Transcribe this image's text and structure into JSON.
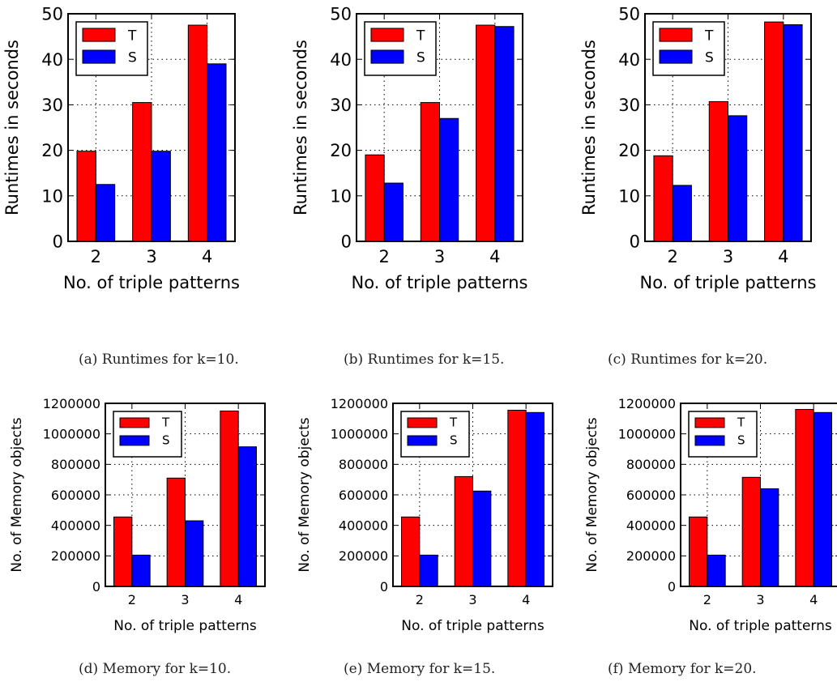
{
  "colors": {
    "T": "#ff0000",
    "S": "#0000ff",
    "edge": "#000000",
    "grid": "#000000"
  },
  "chart_data": [
    {
      "type": "bar",
      "caption": "(a) Runtimes for k=10.",
      "categories": [
        "2",
        "3",
        "4"
      ],
      "xlabel": "No. of triple patterns",
      "ylabel": "Runtimes in seconds",
      "ylim": [
        0,
        50
      ],
      "yticks": [
        "0",
        "10",
        "20",
        "30",
        "40",
        "50"
      ],
      "grid": true,
      "legend_position": "top-left",
      "series": [
        {
          "name": "T",
          "values": [
            19.8,
            30.5,
            47.5
          ]
        },
        {
          "name": "S",
          "values": [
            12.5,
            19.8,
            39.0
          ]
        }
      ]
    },
    {
      "type": "bar",
      "caption": "(b) Runtimes for k=15.",
      "categories": [
        "2",
        "3",
        "4"
      ],
      "xlabel": "No. of triple patterns",
      "ylabel": "Runtimes in seconds",
      "ylim": [
        0,
        50
      ],
      "yticks": [
        "0",
        "10",
        "20",
        "30",
        "40",
        "50"
      ],
      "grid": true,
      "legend_position": "top-left",
      "series": [
        {
          "name": "T",
          "values": [
            19.0,
            30.5,
            47.5
          ]
        },
        {
          "name": "S",
          "values": [
            12.8,
            27.0,
            47.2
          ]
        }
      ]
    },
    {
      "type": "bar",
      "caption": "(c) Runtimes for k=20.",
      "categories": [
        "2",
        "3",
        "4"
      ],
      "xlabel": "No. of triple patterns",
      "ylabel": "Runtimes in seconds",
      "ylim": [
        0,
        50
      ],
      "yticks": [
        "0",
        "10",
        "20",
        "30",
        "40",
        "50"
      ],
      "grid": true,
      "legend_position": "top-left",
      "series": [
        {
          "name": "T",
          "values": [
            18.8,
            30.7,
            48.2
          ]
        },
        {
          "name": "S",
          "values": [
            12.3,
            27.6,
            47.6
          ]
        }
      ]
    },
    {
      "type": "bar",
      "caption": "(d) Memory for k=10.",
      "categories": [
        "2",
        "3",
        "4"
      ],
      "xlabel": "No. of triple patterns",
      "ylabel": "No. of Memory objects",
      "ylim": [
        0,
        1200000
      ],
      "yticks": [
        "0",
        "200000",
        "400000",
        "600000",
        "800000",
        "1000000",
        "1200000"
      ],
      "grid": true,
      "legend_position": "top-left",
      "series": [
        {
          "name": "T",
          "values": [
            455000,
            710000,
            1150000
          ]
        },
        {
          "name": "S",
          "values": [
            205000,
            430000,
            915000
          ]
        }
      ]
    },
    {
      "type": "bar",
      "caption": "(e) Memory for k=15.",
      "categories": [
        "2",
        "3",
        "4"
      ],
      "xlabel": "No. of triple patterns",
      "ylabel": "No. of Memory objects",
      "ylim": [
        0,
        1200000
      ],
      "yticks": [
        "0",
        "200000",
        "400000",
        "600000",
        "800000",
        "1000000",
        "1200000"
      ],
      "grid": true,
      "legend_position": "top-left",
      "series": [
        {
          "name": "T",
          "values": [
            455000,
            720000,
            1155000
          ]
        },
        {
          "name": "S",
          "values": [
            205000,
            625000,
            1140000
          ]
        }
      ]
    },
    {
      "type": "bar",
      "caption": "(f) Memory for k=20.",
      "categories": [
        "2",
        "3",
        "4"
      ],
      "xlabel": "No. of triple patterns",
      "ylabel": "No. of Memory objects",
      "ylim": [
        0,
        1200000
      ],
      "yticks": [
        "0",
        "200000",
        "400000",
        "600000",
        "800000",
        "1000000",
        "1200000"
      ],
      "grid": true,
      "legend_position": "top-left",
      "series": [
        {
          "name": "T",
          "values": [
            455000,
            715000,
            1160000
          ]
        },
        {
          "name": "S",
          "values": [
            205000,
            640000,
            1140000
          ]
        }
      ]
    }
  ]
}
